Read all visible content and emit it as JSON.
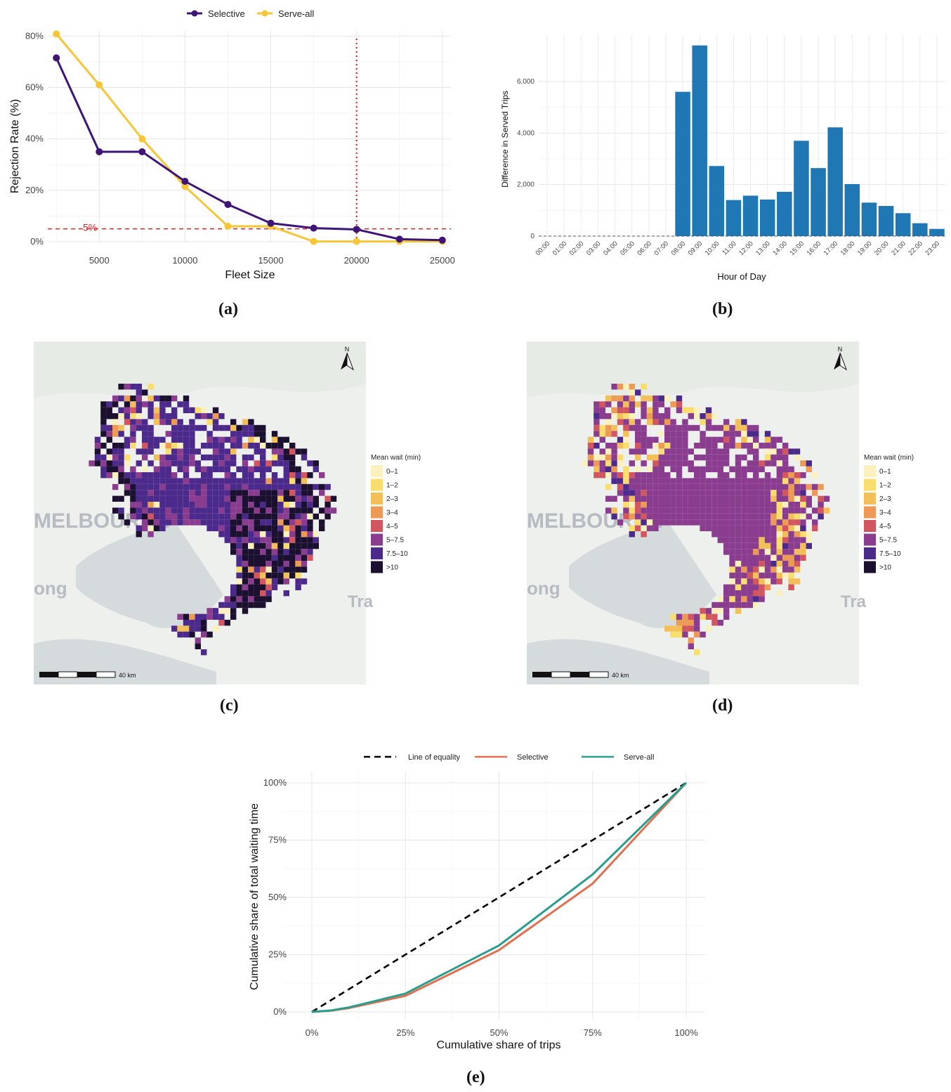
{
  "captions": {
    "a": "(a)",
    "b": "(b)",
    "c": "(c)",
    "d": "(d)",
    "e": "(e)"
  },
  "chart_data": [
    {
      "id": "a",
      "type": "line",
      "title": "",
      "xlabel": "Fleet Size",
      "ylabel": "Rejection Rate (%)",
      "x": [
        2500,
        5000,
        7500,
        10000,
        12500,
        15000,
        17500,
        20000,
        22500,
        25000
      ],
      "x_ticks": [
        5000,
        10000,
        15000,
        20000,
        25000
      ],
      "x_tick_labels": [
        "5000",
        "10000",
        "15000",
        "20000",
        "25000"
      ],
      "y_ticks": [
        0,
        20,
        40,
        60,
        80
      ],
      "y_tick_labels": [
        "0%",
        "20%",
        "40%",
        "60%",
        "80%"
      ],
      "xlim": [
        2000,
        25500
      ],
      "ylim": [
        0,
        82
      ],
      "series": [
        {
          "name": "Selective",
          "color": "#3f1477",
          "values": [
            71.5,
            35,
            35,
            23.5,
            14.5,
            7.2,
            5.3,
            4.8,
            1,
            0.6
          ]
        },
        {
          "name": "Serve-all",
          "color": "#f5c637",
          "values": [
            80.8,
            61,
            40,
            21.5,
            6,
            6,
            0.1,
            0.1,
            0.1,
            0.1
          ]
        }
      ],
      "hline": {
        "value": 5,
        "label": "5%",
        "color": "#e31a1c"
      },
      "vline": {
        "value": 20000,
        "color": "#e31a1c"
      }
    },
    {
      "id": "b",
      "type": "bar",
      "xlabel": "Hour of Day",
      "ylabel": "Difference in Served Trips",
      "categories": [
        "00:00",
        "01:00",
        "02:00",
        "03:00",
        "04:00",
        "05:00",
        "06:00",
        "07:00",
        "08:00",
        "09:00",
        "10:00",
        "11:00",
        "12:00",
        "13:00",
        "14:00",
        "15:00",
        "16:00",
        "17:00",
        "18:00",
        "19:00",
        "20:00",
        "21:00",
        "22:00",
        "23:00"
      ],
      "values": [
        0,
        0,
        0,
        0,
        0,
        0,
        0,
        0,
        5600,
        7400,
        2720,
        1400,
        1570,
        1420,
        1720,
        3700,
        2640,
        4220,
        2020,
        1300,
        1170,
        890,
        500,
        280
      ],
      "y_ticks": [
        0,
        2000,
        4000,
        6000
      ],
      "y_tick_labels": [
        "0",
        "2,000",
        "4,000",
        "6,000"
      ],
      "ylim": [
        0,
        7800
      ],
      "bar_color": "#1f77b4"
    },
    {
      "id": "e",
      "type": "line",
      "xlabel": "Cumulative share of trips",
      "ylabel": "Cumulative share of total waiting time",
      "x_tick_labels": [
        "0%",
        "25%",
        "50%",
        "75%",
        "100%"
      ],
      "y_tick_labels": [
        "0%",
        "25%",
        "50%",
        "75%",
        "100%"
      ],
      "xlim": [
        0,
        1
      ],
      "ylim": [
        0,
        1
      ],
      "series": [
        {
          "name": "Line of equality",
          "color": "#000000",
          "dash": true,
          "x": [
            0,
            1
          ],
          "y": [
            0,
            1
          ]
        },
        {
          "name": "Selective",
          "color": "#e07050",
          "x": [
            0,
            0.05,
            0.1,
            0.25,
            0.5,
            0.75,
            1
          ],
          "y": [
            0,
            0.005,
            0.017,
            0.07,
            0.27,
            0.56,
            1
          ]
        },
        {
          "name": "Serve-all",
          "color": "#2a9d8f",
          "x": [
            0,
            0.05,
            0.1,
            0.25,
            0.5,
            0.75,
            1
          ],
          "y": [
            0,
            0.006,
            0.02,
            0.08,
            0.29,
            0.6,
            1
          ]
        }
      ]
    }
  ],
  "maps": {
    "legend_title": "Mean wait (min)",
    "legend_items": [
      {
        "label": "0–1",
        "color": "#fcf0bf"
      },
      {
        "label": "1–2",
        "color": "#f9dd6e"
      },
      {
        "label": "2–3",
        "color": "#f2bf58"
      },
      {
        "label": "3–4",
        "color": "#ec9a56"
      },
      {
        "label": "4–5",
        "color": "#d2565f"
      },
      {
        "label": "5–7.5",
        "color": "#8a3c8f"
      },
      {
        "label": "7.5–10",
        "color": "#4b2a8c"
      },
      {
        "label": ">10",
        "color": "#1c1030"
      }
    ],
    "place_labels": {
      "melbourne": "MELBOURNE",
      "geelong": "ong",
      "tra": "Tra"
    },
    "north": "N",
    "scale_label": "40 km"
  }
}
